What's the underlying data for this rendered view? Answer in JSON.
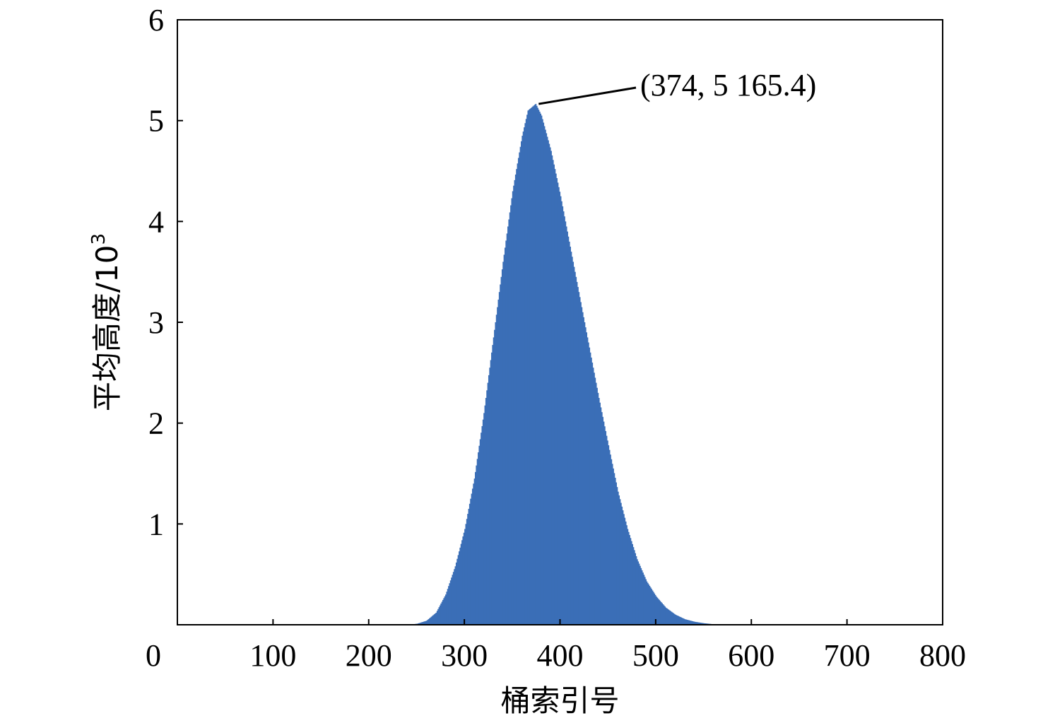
{
  "chart_data": {
    "type": "bar",
    "xlabel": "桶索引号",
    "ylabel_main": "平均高度/10",
    "ylabel_exp": "3",
    "xlim": [
      0,
      800
    ],
    "ylim": [
      0,
      6
    ],
    "xticks": [
      0,
      100,
      200,
      300,
      400,
      500,
      600,
      700,
      800
    ],
    "yticks": [
      1,
      2,
      3,
      4,
      5,
      6
    ],
    "grid": false,
    "bar_color": "#3A6EB7",
    "peak": {
      "x": 374,
      "y": 5.1654,
      "label": "(374, 5 165.4)"
    },
    "series": [
      {
        "points": [
          [
            240,
            0
          ],
          [
            250,
            0.01
          ],
          [
            260,
            0.04
          ],
          [
            270,
            0.12
          ],
          [
            280,
            0.3
          ],
          [
            290,
            0.58
          ],
          [
            300,
            0.95
          ],
          [
            310,
            1.45
          ],
          [
            320,
            2.1
          ],
          [
            330,
            2.85
          ],
          [
            340,
            3.6
          ],
          [
            350,
            4.3
          ],
          [
            360,
            4.85
          ],
          [
            366,
            5.1
          ],
          [
            374,
            5.1654
          ],
          [
            380,
            5.05
          ],
          [
            390,
            4.7
          ],
          [
            400,
            4.25
          ],
          [
            410,
            3.75
          ],
          [
            420,
            3.25
          ],
          [
            430,
            2.75
          ],
          [
            440,
            2.25
          ],
          [
            450,
            1.78
          ],
          [
            460,
            1.32
          ],
          [
            470,
            0.95
          ],
          [
            480,
            0.65
          ],
          [
            490,
            0.43
          ],
          [
            500,
            0.28
          ],
          [
            510,
            0.17
          ],
          [
            520,
            0.1
          ],
          [
            530,
            0.055
          ],
          [
            540,
            0.03
          ],
          [
            550,
            0.015
          ],
          [
            560,
            0.005
          ],
          [
            570,
            0
          ]
        ]
      }
    ]
  }
}
